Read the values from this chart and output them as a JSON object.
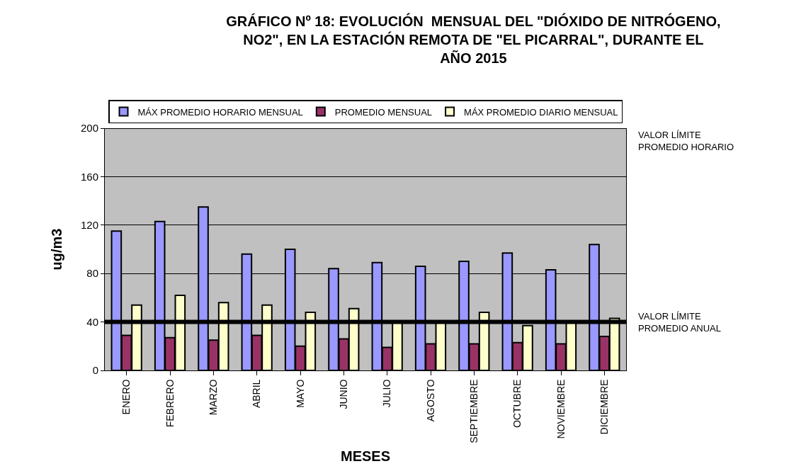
{
  "chart_data": {
    "type": "bar",
    "title": "GRÁFICO Nº 18: EVOLUCIÓN  MENSUAL DEL \"DIÓXIDO DE NITRÓGENO,\nNO2\", EN LA ESTACIÓN REMOTA DE \"EL PICARRAL\", DURANTE EL\nAÑO 2015",
    "xlabel": "MESES",
    "ylabel": "ug/m3",
    "categories": [
      "ENERO",
      "FEBRERO",
      "MARZO",
      "ABRIL",
      "MAYO",
      "JUNIO",
      "JULIO",
      "AGOSTO",
      "SEPTIEMBRE",
      "OCTUBRE",
      "NOVIEMBRE",
      "DICIEMBRE"
    ],
    "series": [
      {
        "name": "MÁX PROMEDIO HORARIO MENSUAL",
        "color": "#9999ff",
        "values": [
          115,
          123,
          135,
          96,
          100,
          84,
          89,
          86,
          90,
          97,
          83,
          104
        ]
      },
      {
        "name": "PROMEDIO MENSUAL",
        "color": "#993366",
        "values": [
          29,
          27,
          25,
          29,
          20,
          26,
          19,
          22,
          22,
          23,
          22,
          28
        ]
      },
      {
        "name": "MÁX PROMEDIO DIARIO MENSUAL",
        "color": "#ffffcc",
        "values": [
          54,
          62,
          56,
          54,
          48,
          51,
          40,
          40,
          48,
          37,
          40,
          43
        ]
      }
    ],
    "ylim": [
      0,
      200
    ],
    "yticks": [
      0,
      40,
      80,
      120,
      160,
      200
    ],
    "grid": "y",
    "legend": "top",
    "ref_lines": [
      {
        "axis": "y",
        "value": 40,
        "label": "VALOR LÍMITE\nPROMEDIO ANUAL",
        "color": "#000000"
      },
      {
        "axis": "y",
        "value": 200,
        "label": "VALOR LÍMITE\nPROMEDIO HORARIO",
        "color": "#000000"
      }
    ]
  }
}
